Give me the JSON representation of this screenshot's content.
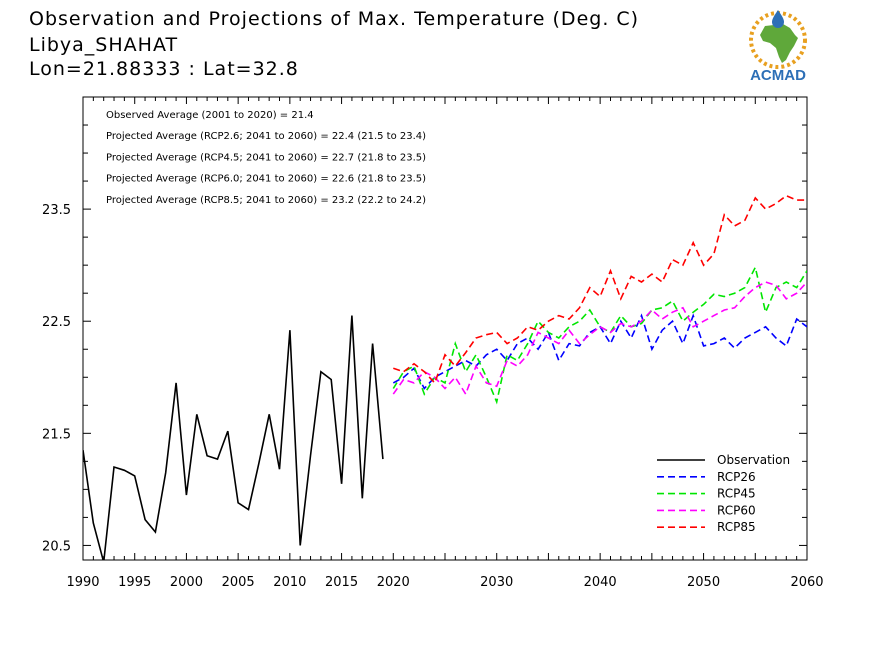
{
  "header": {
    "title": "Observation and Projections of Max. Temperature (Deg. C)",
    "station": "Libya_SHAHAT",
    "coords": "Lon=21.88333 : Lat=32.8"
  },
  "logo": {
    "text": "ACMAD",
    "colors": {
      "africa": "#5fa83a",
      "drop": "#2d6fb6",
      "rays": "#e8a020",
      "text": "#2d6fb6"
    }
  },
  "annotations": [
    "Observed Average (2001 to 2020) = 21.4",
    "Projected Average (RCP2.6; 2041 to 2060) = 22.4 (21.5 to 23.4)",
    "Projected Average (RCP4.5; 2041 to 2060) = 22.7 (21.8 to 23.5)",
    "Projected Average (RCP6.0; 2041 to 2060) = 22.6 (21.8 to 23.5)",
    "Projected Average (RCP8.5; 2041 to 2060) = 23.2 (22.2 to 24.2)"
  ],
  "chart_data": {
    "type": "line",
    "xlim": [
      1990,
      2060
    ],
    "ylim": [
      20.37,
      24.5
    ],
    "x_ticks": [
      1990,
      1995,
      2000,
      2005,
      2010,
      2015,
      2020,
      2030,
      2040,
      2050,
      2060
    ],
    "y_ticks": [
      20.5,
      21.5,
      22.5,
      23.5
    ],
    "y_tick_labels": [
      "20.5",
      "21.5",
      "22.5",
      "23.5"
    ],
    "legend_position": "bottom-right",
    "series": [
      {
        "name": "Observation",
        "color": "#000000",
        "dashed": false,
        "x": [
          1990,
          1991,
          1992,
          1993,
          1994,
          1995,
          1996,
          1997,
          1998,
          1999,
          2000,
          2001,
          2002,
          2003,
          2004,
          2005,
          2006,
          2007,
          2008,
          2009,
          2010,
          2011,
          2012,
          2013,
          2014,
          2015,
          2016,
          2017,
          2018,
          2019
        ],
        "y": [
          21.35,
          20.7,
          20.35,
          21.2,
          21.17,
          21.12,
          20.73,
          20.62,
          21.15,
          21.95,
          20.95,
          21.67,
          21.3,
          21.27,
          21.52,
          20.88,
          20.82,
          21.23,
          21.67,
          21.18,
          22.42,
          20.5,
          21.3,
          22.05,
          21.98,
          21.05,
          22.55,
          20.92,
          22.3,
          21.27
        ]
      },
      {
        "name": "RCP26",
        "color": "#0000ff",
        "dashed": true,
        "x": [
          2020,
          2021,
          2022,
          2023,
          2024,
          2025,
          2026,
          2027,
          2028,
          2029,
          2030,
          2031,
          2032,
          2033,
          2034,
          2035,
          2036,
          2037,
          2038,
          2039,
          2040,
          2041,
          2042,
          2043,
          2044,
          2045,
          2046,
          2047,
          2048,
          2049,
          2050,
          2051,
          2052,
          2053,
          2054,
          2055,
          2056,
          2057,
          2058,
          2059,
          2060
        ],
        "y": [
          21.95,
          22.0,
          22.08,
          21.9,
          22.0,
          22.05,
          22.1,
          22.15,
          22.1,
          22.2,
          22.25,
          22.15,
          22.3,
          22.35,
          22.25,
          22.4,
          22.15,
          22.3,
          22.28,
          22.4,
          22.45,
          22.3,
          22.5,
          22.35,
          22.55,
          22.25,
          22.42,
          22.5,
          22.3,
          22.55,
          22.28,
          22.3,
          22.35,
          22.26,
          22.35,
          22.4,
          22.45,
          22.35,
          22.28,
          22.52,
          22.45
        ]
      },
      {
        "name": "RCP45",
        "color": "#00e600",
        "dashed": true,
        "x": [
          2020,
          2021,
          2022,
          2023,
          2024,
          2025,
          2026,
          2027,
          2028,
          2029,
          2030,
          2031,
          2032,
          2033,
          2034,
          2035,
          2036,
          2037,
          2038,
          2039,
          2040,
          2041,
          2042,
          2043,
          2044,
          2045,
          2046,
          2047,
          2048,
          2049,
          2050,
          2051,
          2052,
          2053,
          2054,
          2055,
          2056,
          2057,
          2058,
          2059,
          2060
        ],
        "y": [
          21.9,
          22.05,
          22.1,
          21.85,
          22.0,
          21.95,
          22.3,
          22.05,
          22.2,
          22.0,
          21.78,
          22.2,
          22.15,
          22.3,
          22.5,
          22.4,
          22.35,
          22.45,
          22.5,
          22.6,
          22.45,
          22.4,
          22.55,
          22.45,
          22.48,
          22.6,
          22.62,
          22.68,
          22.5,
          22.58,
          22.65,
          22.74,
          22.72,
          22.75,
          22.8,
          22.98,
          22.58,
          22.8,
          22.85,
          22.8,
          22.95
        ]
      },
      {
        "name": "RCP60",
        "color": "#ff00ff",
        "dashed": true,
        "x": [
          2020,
          2021,
          2022,
          2023,
          2024,
          2025,
          2026,
          2027,
          2028,
          2029,
          2030,
          2031,
          2032,
          2033,
          2034,
          2035,
          2036,
          2037,
          2038,
          2039,
          2040,
          2041,
          2042,
          2043,
          2044,
          2045,
          2046,
          2047,
          2048,
          2049,
          2050,
          2051,
          2052,
          2053,
          2054,
          2055,
          2056,
          2057,
          2058,
          2059,
          2060
        ],
        "y": [
          21.85,
          21.98,
          21.95,
          22.05,
          22.0,
          21.9,
          22.0,
          21.85,
          22.1,
          21.95,
          21.92,
          22.15,
          22.1,
          22.2,
          22.4,
          22.35,
          22.3,
          22.42,
          22.3,
          22.38,
          22.45,
          22.4,
          22.48,
          22.45,
          22.5,
          22.6,
          22.52,
          22.58,
          22.62,
          22.45,
          22.5,
          22.55,
          22.6,
          22.62,
          22.72,
          22.8,
          22.85,
          22.82,
          22.7,
          22.75,
          22.85
        ]
      },
      {
        "name": "RCP85",
        "color": "#ff0000",
        "dashed": true,
        "x": [
          2020,
          2021,
          2022,
          2023,
          2024,
          2025,
          2026,
          2027,
          2028,
          2029,
          2030,
          2031,
          2032,
          2033,
          2034,
          2035,
          2036,
          2037,
          2038,
          2039,
          2040,
          2041,
          2042,
          2043,
          2044,
          2045,
          2046,
          2047,
          2048,
          2049,
          2050,
          2051,
          2052,
          2053,
          2054,
          2055,
          2056,
          2057,
          2058,
          2059,
          2060
        ],
        "y": [
          22.08,
          22.05,
          22.12,
          22.05,
          21.95,
          22.2,
          22.1,
          22.22,
          22.35,
          22.38,
          22.4,
          22.3,
          22.35,
          22.45,
          22.42,
          22.5,
          22.55,
          22.52,
          22.62,
          22.8,
          22.72,
          22.95,
          22.7,
          22.9,
          22.85,
          22.92,
          22.85,
          23.05,
          23.0,
          23.2,
          23.0,
          23.1,
          23.45,
          23.35,
          23.4,
          23.6,
          23.5,
          23.55,
          23.62,
          23.58,
          23.58
        ]
      }
    ]
  }
}
